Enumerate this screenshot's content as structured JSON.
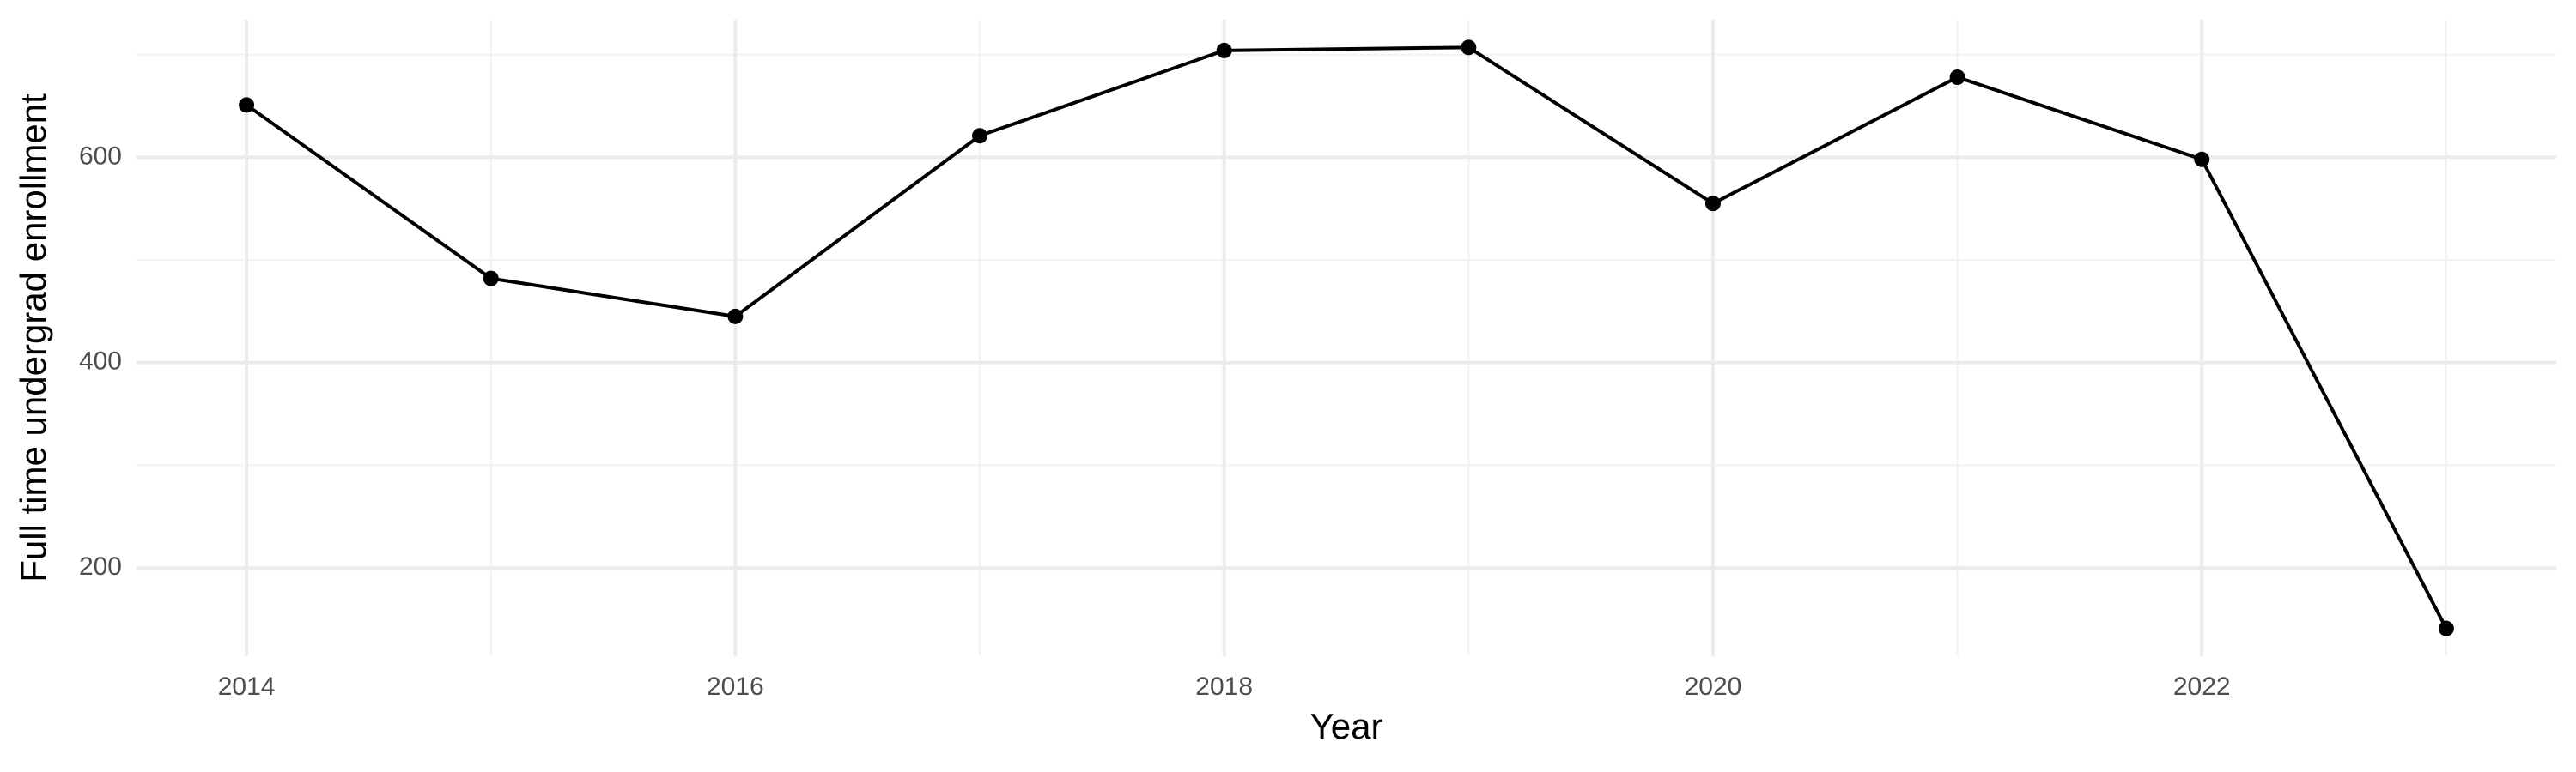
{
  "chart_data": {
    "type": "line",
    "x_label": "Year",
    "y_label": "Full time undergrad enrollment",
    "x": [
      2014,
      2015,
      2016,
      2017,
      2018,
      2019,
      2020,
      2021,
      2022,
      2023
    ],
    "series": [
      {
        "color": "#000000",
        "values": [
          651,
          482,
          445,
          621,
          704,
          707,
          555,
          678,
          598,
          141
        ]
      }
    ],
    "xlim": [
      2013.55,
      2023.45
    ],
    "ylim": [
      114,
      734
    ],
    "xticks": [
      2014,
      2016,
      2018,
      2020,
      2022
    ],
    "yticks": [
      200,
      400,
      600
    ],
    "xticks_minor": [
      2015,
      2017,
      2019,
      2021,
      2023
    ],
    "yticks_minor": [
      300,
      500,
      700
    ],
    "grid": true
  }
}
